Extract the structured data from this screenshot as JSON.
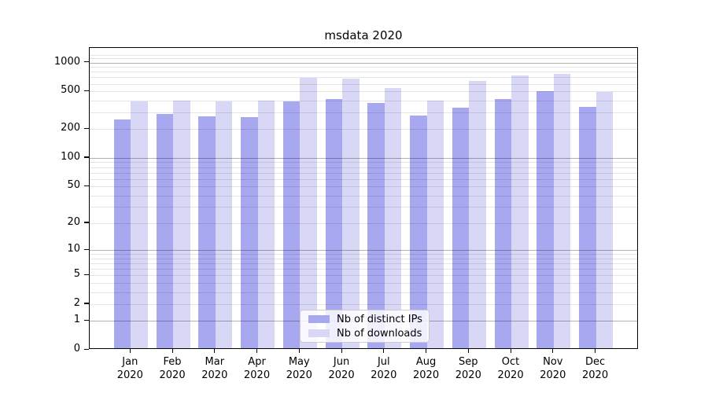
{
  "chart": {
    "title": "msdata 2020",
    "colors": {
      "distinct_ips": "#a8a8f0",
      "downloads": "#d8d8f6",
      "major_grid": "rgba(0,0,0,0.30)",
      "minor_grid": "rgba(0,0,0,0.10)",
      "spine": "#000000"
    }
  },
  "chart_data": {
    "type": "bar",
    "title": "msdata 2020",
    "categories": [
      "Jan 2020",
      "Feb 2020",
      "Mar 2020",
      "Apr 2020",
      "May 2020",
      "Jun 2020",
      "Jul 2020",
      "Aug 2020",
      "Sep 2020",
      "Oct 2020",
      "Nov 2020",
      "Dec 2020"
    ],
    "series": [
      {
        "name": "Nb of distinct IPs",
        "color": "#a8a8f0",
        "values": [
          245,
          278,
          265,
          260,
          374,
          402,
          362,
          268,
          325,
          397,
          486,
          330
        ]
      },
      {
        "name": "Nb of downloads",
        "color": "#d8d8f6",
        "values": [
          380,
          382,
          380,
          388,
          668,
          650,
          522,
          385,
          620,
          703,
          735,
          478
        ]
      }
    ],
    "xlabel": "",
    "ylabel": "",
    "yscale": "log1p",
    "y_ticks": [
      0,
      1,
      2,
      5,
      10,
      20,
      50,
      100,
      200,
      500,
      1000
    ],
    "y_minor_gridlines": [
      2,
      3,
      4,
      5,
      6,
      7,
      8,
      9,
      20,
      30,
      40,
      50,
      60,
      70,
      80,
      90,
      200,
      300,
      400,
      500,
      600,
      700,
      800,
      900,
      1100,
      1200
    ],
    "y_major_gridlines": [
      1,
      10,
      100,
      1000
    ],
    "ylim": [
      0,
      1430
    ],
    "grid": "horizontal major+minor, drawn above bars",
    "legend_position": "lower center inside axes",
    "bar_group": "paired, distinct-IPs left / downloads right"
  }
}
